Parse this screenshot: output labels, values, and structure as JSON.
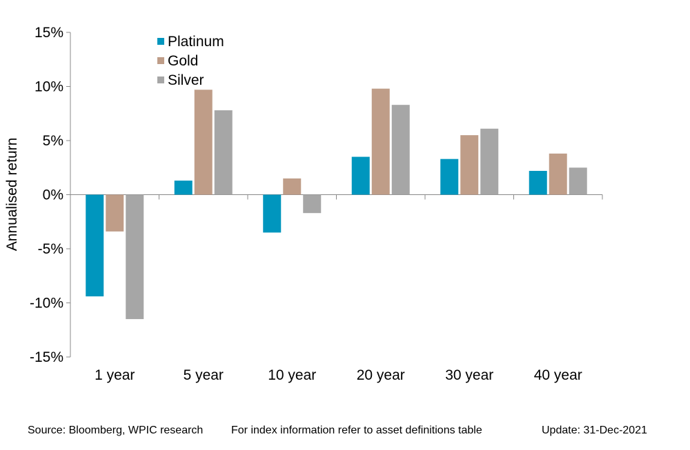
{
  "chart_data": {
    "type": "bar",
    "title": "",
    "xlabel": "",
    "ylabel": "Annualised return",
    "categories": [
      "1 year",
      "5 year",
      "10 year",
      "20 year",
      "30 year",
      "40 year"
    ],
    "series": [
      {
        "name": "Platinum",
        "color": "#0096be",
        "values": [
          -9.4,
          1.3,
          -3.5,
          3.5,
          3.3,
          2.2
        ]
      },
      {
        "name": "Gold",
        "color": "#bf9d88",
        "values": [
          -3.4,
          9.7,
          1.5,
          9.8,
          5.5,
          3.8
        ]
      },
      {
        "name": "Silver",
        "color": "#a6a6a6",
        "values": [
          -11.5,
          7.8,
          -1.7,
          8.3,
          6.1,
          2.5
        ]
      }
    ],
    "ylim": [
      -15,
      15
    ],
    "yticks": [
      -15,
      -10,
      -5,
      0,
      5,
      10,
      15
    ],
    "ytick_labels": [
      "-15%",
      "-10%",
      "-5%",
      "0%",
      "5%",
      "10%",
      "15%"
    ],
    "grid": false,
    "legend_position": "top-left"
  },
  "footer": {
    "source": "Source: Bloomberg, WPIC research",
    "note": "For index information refer to asset definitions table",
    "update": "Update: 31-Dec-2021"
  }
}
